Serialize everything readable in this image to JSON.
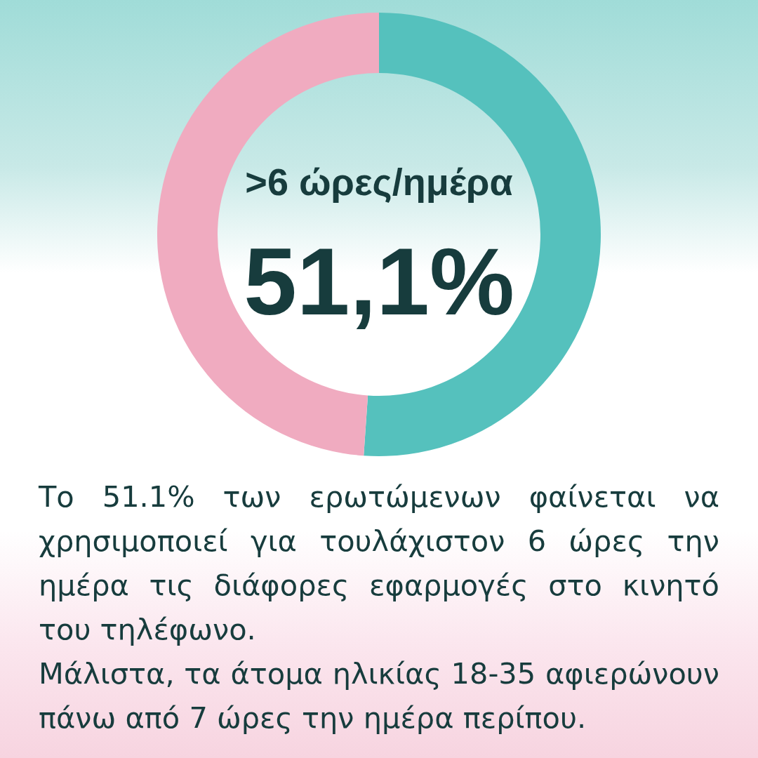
{
  "chart_data": {
    "type": "donut",
    "categories": [
      ">6 ώρες/ημέρα",
      null
    ],
    "values": [
      51.1,
      48.9
    ],
    "colors": [
      "#55c1bd",
      "#f0abc0"
    ],
    "value_labels": [
      "51,1%",
      null
    ],
    "annotations": [
      "Το 51.1% των ερωτώμενων φαίνεται να χρησιμοποιεί για τουλάχιστον 6 ώρες την ημέρα τις διάφορες εφαρμογές στο κινητό του τηλέφωνο.",
      "Μάλιστα, τα άτομα ηλικίας 18-35 αφιερώνουν πάνω από 7 ώρες την ημέρα περίπου."
    ]
  }
}
